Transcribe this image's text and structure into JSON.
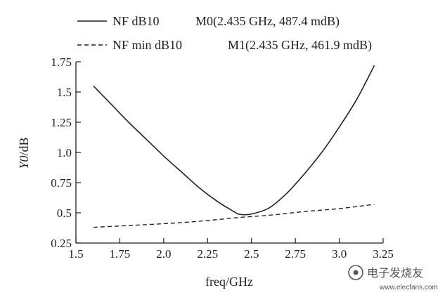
{
  "chart_data": {
    "type": "line",
    "title": "",
    "xlabel": "freq/GHz",
    "ylabel_italic": "Y0",
    "ylabel_rest": "/dB",
    "xlim": [
      1.5,
      3.25
    ],
    "ylim": [
      0.25,
      1.75
    ],
    "grid": false,
    "xticks": [
      1.5,
      1.75,
      2.0,
      2.25,
      2.5,
      2.75,
      3.0,
      3.25
    ],
    "xtick_labels": [
      "1.5",
      "1.75",
      "2.0",
      "2.25",
      "2.5",
      "2.75",
      "3.0",
      "3.25"
    ],
    "yticks": [
      0.25,
      0.5,
      0.75,
      1.0,
      1.25,
      1.5,
      1.75
    ],
    "ytick_labels": [
      "0.25",
      "0.5",
      "0.75",
      "1.0",
      "1.25",
      "1.5",
      "1.75"
    ],
    "legend_position": "top-left",
    "series": [
      {
        "name": "NF dB10",
        "marker_label": "M0(2.435 GHz, 487.4 mdB)",
        "style": "solid",
        "color": "#222222",
        "x": [
          1.6,
          1.7,
          1.8,
          1.9,
          2.0,
          2.1,
          2.2,
          2.3,
          2.4,
          2.435,
          2.5,
          2.6,
          2.7,
          2.8,
          2.9,
          3.0,
          3.1,
          3.2
        ],
        "y": [
          1.55,
          1.4,
          1.25,
          1.11,
          0.97,
          0.84,
          0.71,
          0.6,
          0.51,
          0.487,
          0.49,
          0.54,
          0.66,
          0.82,
          1.0,
          1.21,
          1.44,
          1.72
        ]
      },
      {
        "name": "NF min dB10",
        "marker_label": "M1(2.435 GHz, 461.9 mdB)",
        "style": "dashed",
        "color": "#222222",
        "x": [
          1.6,
          1.8,
          2.0,
          2.2,
          2.435,
          2.6,
          2.8,
          3.0,
          3.2
        ],
        "y": [
          0.38,
          0.395,
          0.41,
          0.43,
          0.462,
          0.48,
          0.51,
          0.535,
          0.57
        ]
      }
    ]
  },
  "watermark": {
    "line1": "电子发烧友",
    "line2": "www.elecfans.com"
  },
  "colors": {
    "ink": "#222222",
    "watermark": "#555555"
  }
}
